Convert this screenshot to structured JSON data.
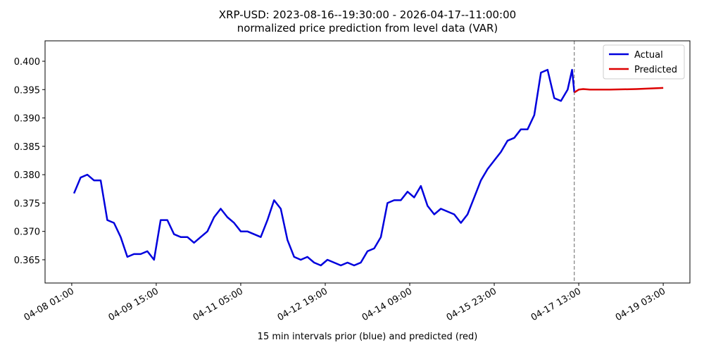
{
  "chart_data": {
    "type": "line",
    "title": "XRP-USD: 2023-08-16--19:30:00 - 2026-04-17--11:00:00",
    "subtitle": "normalized price prediction from level data (VAR)",
    "x_label": "15 min intervals prior (blue) and predicted (red)",
    "xlim": [
      "04-07 13:00",
      "04-19 15:00"
    ],
    "xticks": [
      "04-08 01:00",
      "04-09 15:00",
      "04-11 05:00",
      "04-12 19:00",
      "04-14 09:00",
      "04-15 23:00",
      "04-17 13:00",
      "04-19 03:00"
    ],
    "ylim": [
      0.3609,
      0.4036
    ],
    "yticks": [
      0.365,
      {
        "value": 0.37,
        "label": "0.370"
      },
      0.375,
      {
        "value": 0.38,
        "label": "0.380"
      },
      0.385,
      {
        "value": 0.39,
        "label": "0.390"
      },
      0.395,
      {
        "value": 0.4,
        "label": "0.400"
      }
    ],
    "vline": "04-17 11:00",
    "legend": "upper right",
    "series": [
      {
        "name": "Actual",
        "color": "#0000dd",
        "x": [
          "04-08 02:00",
          "04-08 05:00",
          "04-08 08:00",
          "04-08 11:00",
          "04-08 14:00",
          "04-08 17:00",
          "04-08 20:00",
          "04-08 23:00",
          "04-09 02:00",
          "04-09 05:00",
          "04-09 08:00",
          "04-09 11:00",
          "04-09 14:00",
          "04-09 17:00",
          "04-09 20:00",
          "04-09 23:00",
          "04-10 02:00",
          "04-10 05:00",
          "04-10 08:00",
          "04-10 11:00",
          "04-10 14:00",
          "04-10 17:00",
          "04-10 20:00",
          "04-10 23:00",
          "04-11 02:00",
          "04-11 05:00",
          "04-11 08:00",
          "04-11 11:00",
          "04-11 14:00",
          "04-11 17:00",
          "04-11 20:00",
          "04-11 23:00",
          "04-12 02:00",
          "04-12 05:00",
          "04-12 08:00",
          "04-12 11:00",
          "04-12 14:00",
          "04-12 17:00",
          "04-12 20:00",
          "04-12 23:00",
          "04-13 02:00",
          "04-13 05:00",
          "04-13 08:00",
          "04-13 11:00",
          "04-13 14:00",
          "04-13 17:00",
          "04-13 20:00",
          "04-13 23:00",
          "04-14 02:00",
          "04-14 05:00",
          "04-14 08:00",
          "04-14 11:00",
          "04-14 14:00",
          "04-14 17:00",
          "04-14 20:00",
          "04-14 23:00",
          "04-15 02:00",
          "04-15 05:00",
          "04-15 08:00",
          "04-15 11:00",
          "04-15 14:00",
          "04-15 17:00",
          "04-15 20:00",
          "04-15 23:00",
          "04-16 02:00",
          "04-16 05:00",
          "04-16 08:00",
          "04-16 11:00",
          "04-16 14:00",
          "04-16 17:00",
          "04-16 20:00",
          "04-16 23:00",
          "04-17 02:00",
          "04-17 05:00",
          "04-17 08:00",
          "04-17 10:00",
          "04-17 11:00"
        ],
        "values": [
          0.3767,
          0.3795,
          0.38,
          0.379,
          0.379,
          0.372,
          0.3715,
          0.369,
          0.3655,
          0.366,
          0.366,
          0.3665,
          0.365,
          0.372,
          0.372,
          0.3695,
          0.369,
          0.369,
          0.368,
          0.369,
          0.37,
          0.3725,
          0.374,
          0.3725,
          0.3715,
          0.37,
          0.37,
          0.3695,
          0.369,
          0.372,
          0.3755,
          0.374,
          0.3685,
          0.3655,
          0.365,
          0.3655,
          0.3645,
          0.364,
          0.365,
          0.3645,
          0.364,
          0.3645,
          0.364,
          0.3645,
          0.3665,
          0.367,
          0.369,
          0.375,
          0.3755,
          0.3755,
          0.377,
          0.376,
          0.378,
          0.3745,
          0.373,
          0.374,
          0.3735,
          0.373,
          0.3715,
          0.373,
          0.376,
          0.379,
          0.381,
          0.3825,
          0.384,
          0.386,
          0.3865,
          0.388,
          0.388,
          0.3905,
          0.398,
          0.3985,
          0.3935,
          0.393,
          0.395,
          0.3985,
          0.3945
        ]
      },
      {
        "name": "Predicted",
        "color": "#dd0000",
        "x": [
          "04-17 11:00",
          "04-17 13:00",
          "04-17 15:00",
          "04-17 18:00",
          "04-18 03:00",
          "04-18 15:00",
          "04-19 03:00"
        ],
        "values": [
          0.3945,
          0.395,
          0.3951,
          0.395,
          0.395,
          0.3951,
          0.3953
        ]
      }
    ]
  }
}
